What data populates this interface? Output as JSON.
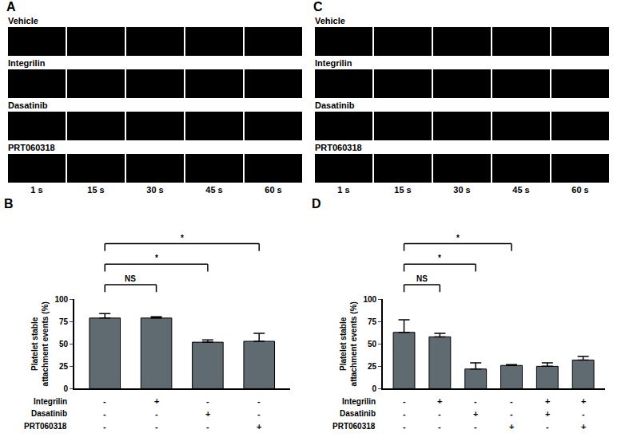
{
  "figure_panels": [
    {
      "panel": "A",
      "rows": [
        "Vehicle",
        "Integrilin",
        "Dasatinib",
        "PRT060318"
      ],
      "times": [
        "1 s",
        "15 s",
        "30 s",
        "45 s",
        "60 s"
      ]
    },
    {
      "panel": "C",
      "rows": [
        "Vehicle",
        "Integrilin",
        "Dasatinib",
        "PRT060318"
      ],
      "times": [
        "1 s",
        "15 s",
        "30 s",
        "45 s",
        "60 s"
      ]
    }
  ],
  "chart_data": [
    {
      "panel": "B",
      "type": "bar",
      "categories": [
        null,
        null,
        null,
        null
      ],
      "values": [
        79,
        79,
        52,
        53
      ],
      "errors": [
        5,
        1.5,
        2.5,
        9
      ],
      "color": "#5f6a71",
      "ylabel": [
        "Platelet stable",
        "attachment events (%)"
      ],
      "ylim": [
        0,
        100
      ],
      "yticks": [
        0,
        25,
        50,
        75,
        100
      ],
      "grid": false,
      "tick_labels": "y",
      "treatments": [
        {
          "label": "Integrilin",
          "marks": [
            "-",
            "+",
            "-",
            "-"
          ]
        },
        {
          "label": "Dasatinib",
          "marks": [
            "-",
            "-",
            "+",
            "-"
          ]
        },
        {
          "label": "PRT060318",
          "marks": [
            "-",
            "-",
            "-",
            "+"
          ]
        }
      ],
      "comparisons": [
        {
          "from": 0,
          "to": 1,
          "label": "NS"
        },
        {
          "from": 0,
          "to": 2,
          "label": "*"
        },
        {
          "from": 0,
          "to": 3,
          "label": "*"
        }
      ]
    },
    {
      "panel": "D",
      "type": "bar",
      "categories": [
        null,
        null,
        null,
        null,
        null,
        null
      ],
      "values": [
        63,
        58,
        22,
        26,
        25,
        32
      ],
      "errors": [
        14,
        4,
        7,
        1,
        4,
        4
      ],
      "color": "#5f6a71",
      "ylabel": [
        "Platelet stable",
        "attachment events (%)"
      ],
      "ylim": [
        0,
        100
      ],
      "yticks": [
        0,
        25,
        50,
        75,
        100
      ],
      "grid": false,
      "tick_labels": "y",
      "treatments": [
        {
          "label": "Integrilin",
          "marks": [
            "-",
            "+",
            "-",
            "-",
            "+",
            "+"
          ]
        },
        {
          "label": "Dasatinib",
          "marks": [
            "-",
            "-",
            "+",
            "-",
            "+",
            "-"
          ]
        },
        {
          "label": "PRT060318",
          "marks": [
            "-",
            "-",
            "-",
            "+",
            "-",
            "+"
          ]
        }
      ],
      "comparisons": [
        {
          "from": 0,
          "to": 1,
          "label": "NS"
        },
        {
          "from": 0,
          "to": 2,
          "label": "*"
        },
        {
          "from": 0,
          "to": 3,
          "label": "*"
        }
      ]
    }
  ]
}
